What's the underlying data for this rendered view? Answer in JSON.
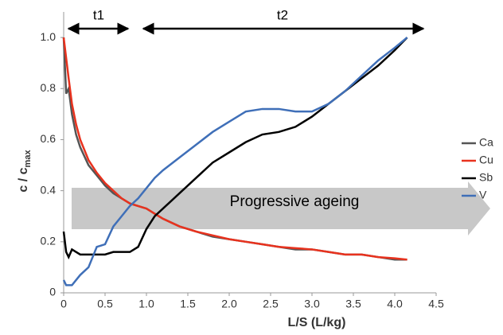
{
  "chart_data": {
    "type": "line",
    "ylabel": {
      "text": "c / c",
      "subscript": "max"
    },
    "xlabel": "L/S (L/kg)",
    "annotations": [
      "t1",
      "t2",
      "Progressive ageing"
    ],
    "x": [
      0,
      0.03,
      0.06,
      0.1,
      0.15,
      0.2,
      0.3,
      0.4,
      0.5,
      0.6,
      0.7,
      0.8,
      0.9,
      1.0,
      1.1,
      1.2,
      1.4,
      1.6,
      1.8,
      2.0,
      2.2,
      2.4,
      2.6,
      2.8,
      3.0,
      3.2,
      3.4,
      3.6,
      3.8,
      4.0,
      4.15
    ],
    "series": [
      {
        "name": "Ca",
        "color": "#555555",
        "values": [
          1.0,
          0.78,
          0.8,
          0.7,
          0.62,
          0.57,
          0.5,
          0.46,
          0.42,
          0.39,
          0.37,
          0.35,
          0.34,
          0.33,
          0.31,
          0.29,
          0.26,
          0.24,
          0.22,
          0.21,
          0.2,
          0.19,
          0.18,
          0.17,
          0.17,
          0.16,
          0.15,
          0.15,
          0.14,
          0.13,
          0.13
        ]
      },
      {
        "name": "Cu",
        "color": "#e8321e",
        "values": [
          1.0,
          0.92,
          0.84,
          0.74,
          0.66,
          0.6,
          0.52,
          0.47,
          0.43,
          0.4,
          0.37,
          0.35,
          0.34,
          0.33,
          0.31,
          0.29,
          0.26,
          0.24,
          0.225,
          0.21,
          0.2,
          0.19,
          0.18,
          0.175,
          0.17,
          0.16,
          0.15,
          0.15,
          0.14,
          0.135,
          0.13
        ]
      },
      {
        "name": "Sb",
        "color": "#000000",
        "values": [
          0.24,
          0.16,
          0.14,
          0.17,
          0.16,
          0.15,
          0.15,
          0.15,
          0.15,
          0.16,
          0.16,
          0.16,
          0.18,
          0.25,
          0.3,
          0.33,
          0.39,
          0.45,
          0.51,
          0.55,
          0.59,
          0.62,
          0.63,
          0.65,
          0.69,
          0.74,
          0.79,
          0.84,
          0.89,
          0.95,
          1.0
        ]
      },
      {
        "name": "V",
        "color": "#3f6fb8",
        "values": [
          0.05,
          0.03,
          0.03,
          0.03,
          0.05,
          0.07,
          0.1,
          0.18,
          0.19,
          0.26,
          0.3,
          0.34,
          0.37,
          0.41,
          0.45,
          0.48,
          0.53,
          0.58,
          0.63,
          0.67,
          0.71,
          0.72,
          0.72,
          0.71,
          0.71,
          0.74,
          0.79,
          0.85,
          0.91,
          0.96,
          1.0
        ]
      }
    ],
    "xlim": [
      0,
      4.5
    ],
    "xticks": [
      0,
      0.5,
      {
        "value": 1,
        "label": "1.0"
      },
      1.5,
      {
        "value": 2,
        "label": "2.0"
      },
      2.5,
      {
        "value": 3,
        "label": "3.0"
      },
      3.5,
      {
        "value": 4,
        "label": "4.0"
      },
      4.5
    ],
    "ylim": [
      0,
      1.1
    ],
    "yticks": [
      0,
      0.2,
      0.4,
      0.6,
      0.8,
      {
        "value": 1,
        "label": "1.0"
      }
    ],
    "grid": false,
    "legend": "right"
  }
}
